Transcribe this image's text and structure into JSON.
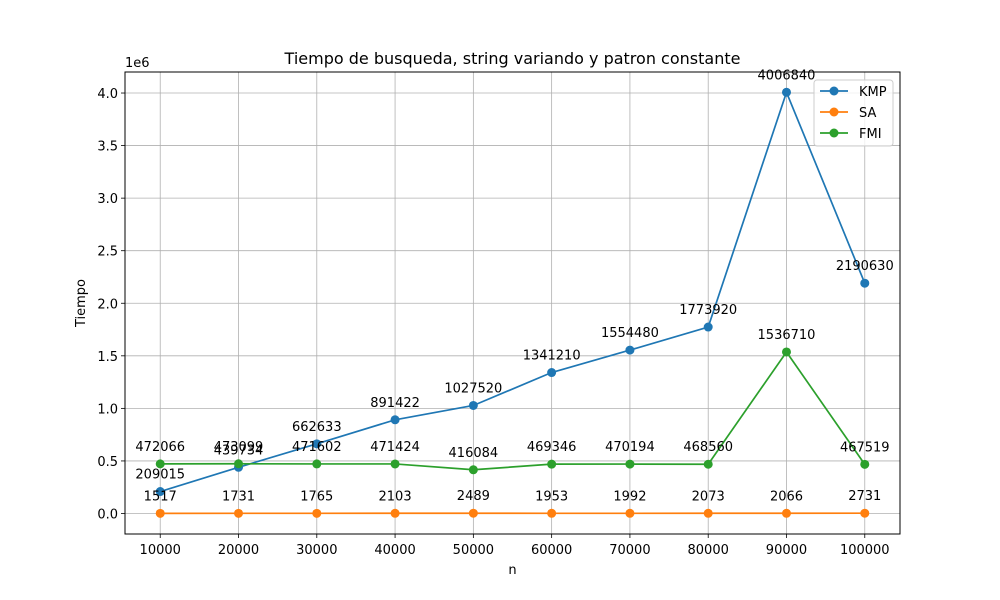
{
  "chart_data": {
    "type": "line",
    "title": "Tiempo de busqueda, string variando y patron constante",
    "xlabel": "n",
    "ylabel": "Tiempo",
    "y_offset_label": "1e6",
    "x": [
      10000,
      20000,
      30000,
      40000,
      50000,
      60000,
      70000,
      80000,
      90000,
      100000
    ],
    "x_tick_labels": [
      "10000",
      "20000",
      "30000",
      "40000",
      "50000",
      "60000",
      "70000",
      "80000",
      "90000",
      "100000"
    ],
    "y_ticks": [
      0.0,
      0.5,
      1.0,
      1.5,
      2.0,
      2.5,
      3.0,
      3.5,
      4.0
    ],
    "y_tick_labels": [
      "0.0",
      "0.5",
      "1.0",
      "1.5",
      "2.0",
      "2.5",
      "3.0",
      "3.5",
      "4.0"
    ],
    "ylim": [
      -195000,
      4200000
    ],
    "xlim": [
      5500,
      104500
    ],
    "grid": true,
    "legend_position": "top-right",
    "series": [
      {
        "name": "KMP",
        "color": "#1f77b4",
        "values": [
          209015,
          439734,
          662633,
          891422,
          1027520,
          1341210,
          1554480,
          1773920,
          4006840,
          2190630
        ],
        "labels": [
          "209015",
          "439734",
          "662633",
          "891422",
          "1027520",
          "1341210",
          "1554480",
          "1773920",
          "4006840",
          "2190630"
        ]
      },
      {
        "name": "SA",
        "color": "#ff7f0e",
        "values": [
          1517,
          1731,
          1765,
          2103,
          2489,
          1953,
          1992,
          2073,
          2066,
          2731
        ],
        "labels": [
          "1517",
          "1731",
          "1765",
          "2103",
          "2489",
          "1953",
          "1992",
          "2073",
          "2066",
          "2731"
        ]
      },
      {
        "name": "FMI",
        "color": "#2ca02c",
        "values": [
          472066,
          473099,
          471602,
          471424,
          416084,
          469346,
          470194,
          468560,
          1536710,
          467519
        ],
        "labels": [
          "472066",
          "473099",
          "471602",
          "471424",
          "416084",
          "469346",
          "470194",
          "468560",
          "1536710",
          "467519"
        ]
      }
    ]
  }
}
